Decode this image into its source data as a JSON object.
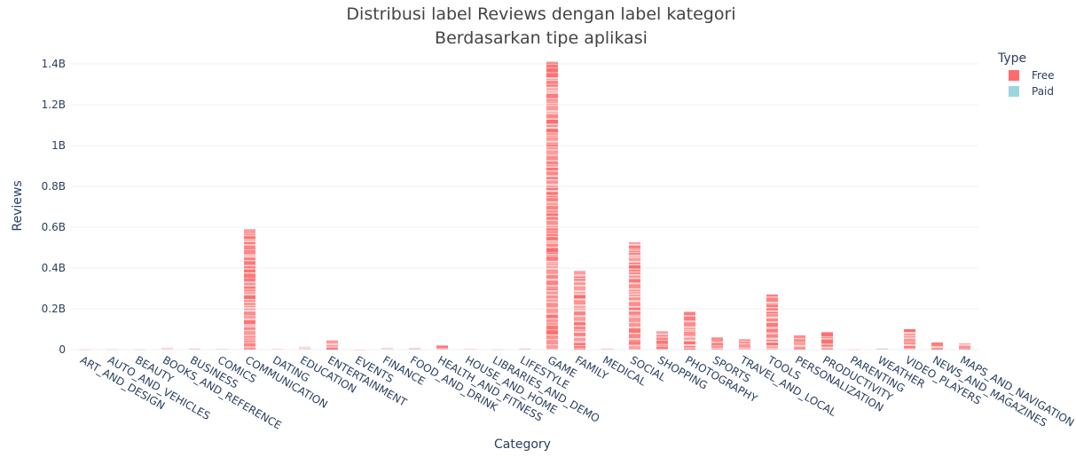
{
  "chart_data": {
    "type": "bar",
    "title": "Distribusi label Reviews dengan label kategori",
    "subtitle": "Berdasarkan tipe aplikasi",
    "xlabel": "Category",
    "ylabel": "Reviews",
    "ylim": [
      0,
      1.4
    ],
    "y_unit": "B",
    "y_ticks": [
      {
        "value": 0,
        "label": "0"
      },
      {
        "value": 0.2,
        "label": "0.2B"
      },
      {
        "value": 0.4,
        "label": "0.4B"
      },
      {
        "value": 0.6,
        "label": "0.6B"
      },
      {
        "value": 0.8,
        "label": "0.8B"
      },
      {
        "value": 1.0,
        "label": "1B"
      },
      {
        "value": 1.2,
        "label": "1.2B"
      },
      {
        "value": 1.4,
        "label": "1.4B"
      }
    ],
    "grid": true,
    "legend_position": "top-right",
    "legend": {
      "title": "Type",
      "entries": [
        {
          "name": "Free",
          "color": "#ff6b6b"
        },
        {
          "name": "Paid",
          "color": "#9bd6dd"
        }
      ]
    },
    "categories": [
      "ART_AND_DESIGN",
      "AUTO_AND_VEHICLES",
      "BEAUTY",
      "BOOKS_AND_REFERENCE",
      "BUSINESS",
      "COMICS",
      "COMMUNICATION",
      "DATING",
      "EDUCATION",
      "ENTERTAINMENT",
      "EVENTS",
      "FINANCE",
      "FOOD_AND_DRINK",
      "HEALTH_AND_FITNESS",
      "HOUSE_AND_HOME",
      "LIBRARIES_AND_DEMO",
      "LIFESTYLE",
      "GAME",
      "FAMILY",
      "MEDICAL",
      "SOCIAL",
      "SHOPPING",
      "PHOTOGRAPHY",
      "SPORTS",
      "TRAVEL_AND_LOCAL",
      "TOOLS",
      "PERSONALIZATION",
      "PRODUCTIVITY",
      "PARENTING",
      "WEATHER",
      "VIDEO_PLAYERS",
      "NEWS_AND_MAGAZINES",
      "MAPS_AND_NAVIGATION"
    ],
    "series": [
      {
        "name": "Free",
        "values": [
          0.001,
          0.001,
          0.001,
          0.01,
          0.005,
          0.003,
          0.59,
          0.003,
          0.015,
          0.045,
          0.0002,
          0.01,
          0.008,
          0.02,
          0.003,
          0.001,
          0.005,
          1.41,
          0.385,
          0.005,
          0.525,
          0.09,
          0.185,
          0.06,
          0.05,
          0.27,
          0.07,
          0.085,
          0.001,
          0.005,
          0.1,
          0.035,
          0.03
        ]
      },
      {
        "name": "Paid",
        "values": [
          0,
          0,
          0,
          0,
          0,
          0,
          0,
          0,
          0,
          0,
          0,
          0,
          0,
          0,
          0,
          0,
          0,
          0.002,
          0.003,
          0,
          0,
          0,
          0,
          0,
          0,
          0.001,
          0.001,
          0,
          0,
          0.001,
          0,
          0,
          0
        ]
      }
    ]
  }
}
